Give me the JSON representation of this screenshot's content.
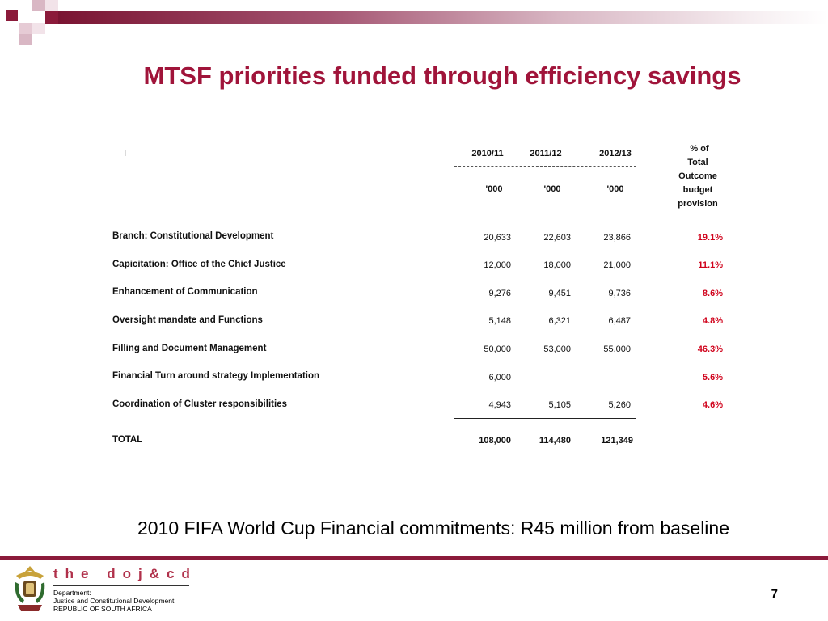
{
  "title": "MTSF priorities funded through efficiency savings",
  "table": {
    "header_marker": "I",
    "years": [
      "2010/11",
      "2011/12",
      "2012/13"
    ],
    "units": [
      "'000",
      "'000",
      "'000"
    ],
    "pct_header": [
      "% of",
      "Total",
      "Outcome",
      "budget",
      "provision"
    ],
    "rows": [
      {
        "label": "Branch: Constitutional Development",
        "v1": "20,633",
        "v2": "22,603",
        "v3": "23,866",
        "pct": "19.1%"
      },
      {
        "label": "Capicitation: Office of the Chief Justice",
        "v1": "12,000",
        "v2": "18,000",
        "v3": "21,000",
        "pct": "11.1%"
      },
      {
        "label": "Enhancement of Communication",
        "v1": "9,276",
        "v2": "9,451",
        "v3": "9,736",
        "pct": "8.6%"
      },
      {
        "label": "Oversight mandate and Functions",
        "v1": "5,148",
        "v2": "6,321",
        "v3": "6,487",
        "pct": "4.8%"
      },
      {
        "label": "Filling and Document Management",
        "v1": "50,000",
        "v2": "53,000",
        "v3": "55,000",
        "pct": "46.3%"
      },
      {
        "label": "Financial Turn around strategy Implementation",
        "v1": "6,000",
        "v2": "",
        "v3": "",
        "pct": "5.6%"
      },
      {
        "label": "Coordination of Cluster responsibilities",
        "v1": "4,943",
        "v2": "5,105",
        "v3": "5,260",
        "pct": "4.6%"
      }
    ],
    "total": {
      "label": "TOTAL",
      "v1": "108,000",
      "v2": "114,480",
      "v3": "121,349"
    }
  },
  "footnote": "2010 FIFA World Cup Financial commitments: R45 million from baseline",
  "footer": {
    "brand": "the doj&cd",
    "dept_line1": "Department:",
    "dept_line2": "Justice and Constitutional Development",
    "dept_line3": "REPUBLIC OF SOUTH AFRICA",
    "page_number": "7"
  },
  "colors": {
    "title": "#a0143a",
    "accent": "#8b1a3a",
    "percent": "#d0021b"
  }
}
